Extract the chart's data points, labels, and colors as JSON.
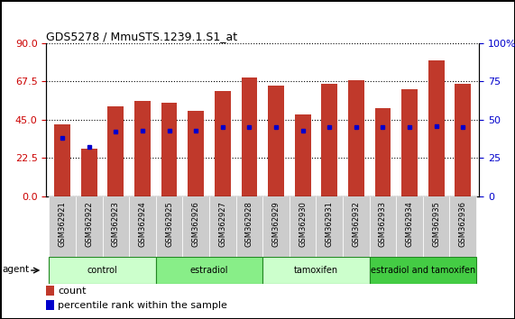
{
  "title": "GDS5278 / MmuSTS.1239.1.S1_at",
  "samples": [
    "GSM362921",
    "GSM362922",
    "GSM362923",
    "GSM362924",
    "GSM362925",
    "GSM362926",
    "GSM362927",
    "GSM362928",
    "GSM362929",
    "GSM362930",
    "GSM362931",
    "GSM362932",
    "GSM362933",
    "GSM362934",
    "GSM362935",
    "GSM362936"
  ],
  "bar_values": [
    42,
    28,
    53,
    56,
    55,
    50,
    62,
    70,
    65,
    48,
    66,
    68,
    52,
    63,
    80,
    66
  ],
  "percentile_values": [
    38,
    32,
    42,
    43,
    43,
    43,
    45,
    45,
    45,
    43,
    45,
    45,
    45,
    45,
    46,
    45
  ],
  "bar_color": "#C0392B",
  "percentile_color": "#0000CC",
  "ylim_left": [
    0,
    90
  ],
  "ylim_right": [
    0,
    100
  ],
  "yticks_left": [
    0,
    22.5,
    45,
    67.5,
    90
  ],
  "yticks_right": [
    0,
    25,
    50,
    75,
    100
  ],
  "groups": [
    {
      "label": "control",
      "start": 0,
      "end": 4,
      "color": "#CCFFCC"
    },
    {
      "label": "estradiol",
      "start": 4,
      "end": 8,
      "color": "#88EE88"
    },
    {
      "label": "tamoxifen",
      "start": 8,
      "end": 12,
      "color": "#CCFFCC"
    },
    {
      "label": "estradiol and tamoxifen",
      "start": 12,
      "end": 16,
      "color": "#44CC44"
    }
  ],
  "agent_label": "agent",
  "legend_count_label": "count",
  "legend_percentile_label": "percentile rank within the sample",
  "tick_label_color_left": "#CC0000",
  "tick_label_color_right": "#0000CC",
  "sample_box_color": "#CCCCCC"
}
